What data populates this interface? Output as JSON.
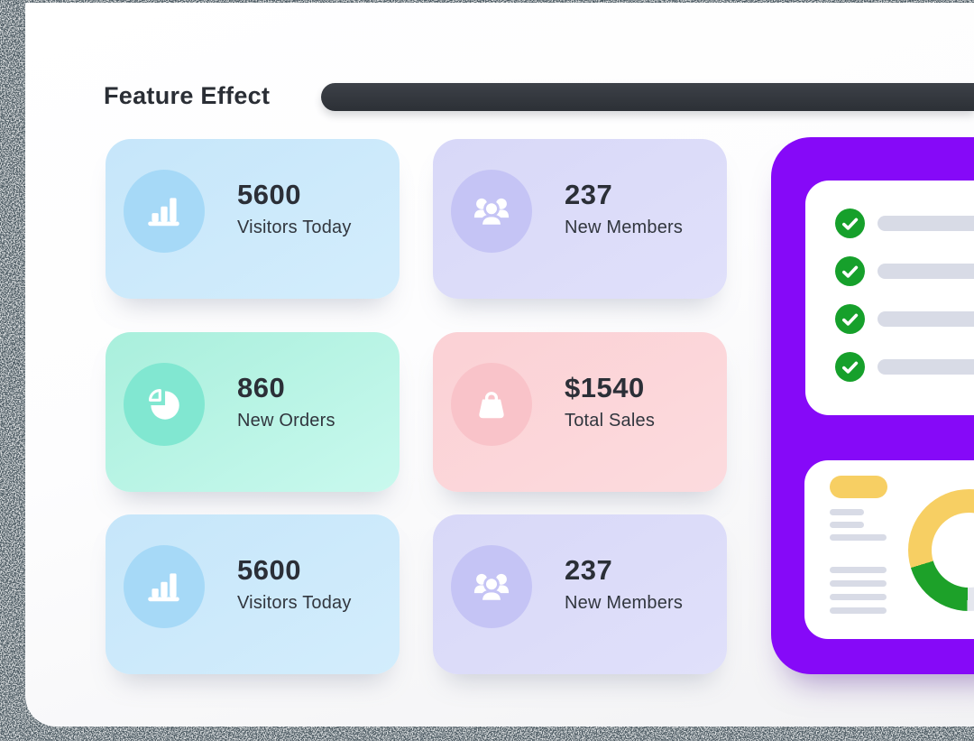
{
  "title": "Feature Effect",
  "colors": {
    "accent_purple": "#8609f8",
    "check_green": "#16a02b",
    "placeholder_gray": "#d8dbe6",
    "pill_yellow": "#f7cf63",
    "headline_dark": "#2a2e35",
    "card_blue": "#c6e6fa",
    "card_lavender": "#d8d8f8",
    "card_teal": "#a9efdc",
    "card_pink": "#fbd1d5"
  },
  "stats": [
    {
      "value": "5600",
      "label": "Visitors Today",
      "icon": "bar-chart",
      "theme": "blue"
    },
    {
      "value": "237",
      "label": "New Members",
      "icon": "members",
      "theme": "lavender"
    },
    {
      "value": "860",
      "label": "New Orders",
      "icon": "pie-chart",
      "theme": "teal"
    },
    {
      "value": "$1540",
      "label": "Total Sales",
      "icon": "shopping-bag",
      "theme": "pink"
    },
    {
      "value": "5600",
      "label": "Visitors Today",
      "icon": "bar-chart",
      "theme": "blue"
    },
    {
      "value": "237",
      "label": "New Members",
      "icon": "members",
      "theme": "lavender"
    }
  ],
  "side_panel": {
    "checklist": {
      "rows": 4
    },
    "report": {
      "line_groups": [
        [
          38,
          38,
          63
        ],
        [
          63,
          63,
          63,
          63
        ]
      ]
    }
  },
  "chart_data": {
    "type": "pie",
    "subtype": "donut",
    "title": "",
    "series": [
      {
        "name": "segment-yellow",
        "value": 54.7,
        "color": "#f7cf63"
      },
      {
        "name": "segment-green",
        "value": 19.8,
        "color": "#1da129"
      },
      {
        "name": "segment-remainder",
        "value": 25.5,
        "color": "#e4e6ee"
      }
    ],
    "segments_conic": [
      {
        "color": "#f7cf63",
        "from": 0,
        "to": 25
      },
      {
        "color": "#e4e6ee",
        "from": 25,
        "to": 50.5
      },
      {
        "color": "#1da129",
        "from": 50.5,
        "to": 70.3
      },
      {
        "color": "#f7cf63",
        "from": 70.3,
        "to": 100
      }
    ]
  }
}
